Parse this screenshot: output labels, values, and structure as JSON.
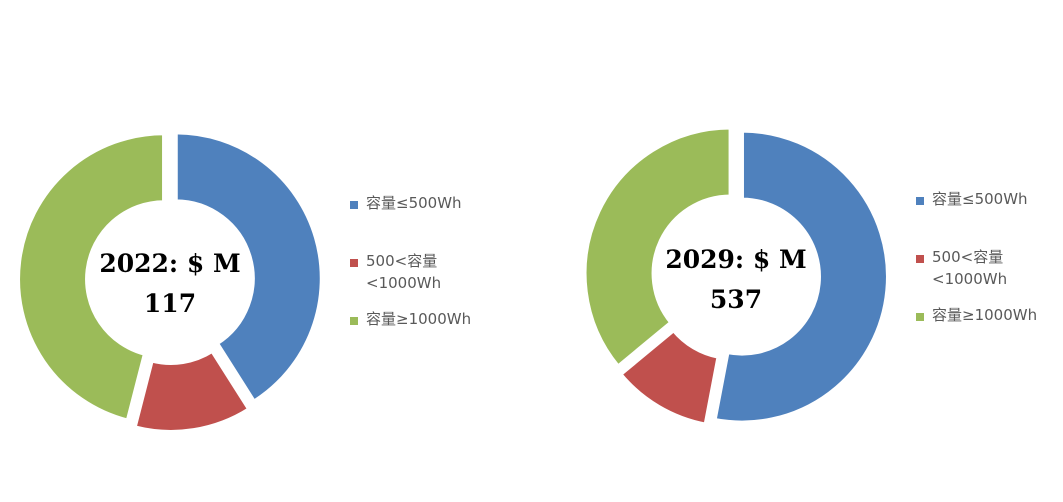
{
  "colors": {
    "blue": "#4F81BD",
    "red": "#C0504D",
    "green": "#9BBB59"
  },
  "chart_data": [
    {
      "type": "pie",
      "variant": "donut",
      "center_label": [
        "2022: $ M",
        "117"
      ],
      "categories": [
        "容量≤500Wh",
        "500<容量<1000Wh",
        "容量≥1000Wh"
      ],
      "legend_labels": [
        [
          "容量≤500Wh"
        ],
        [
          "500<容量",
          "<1000Wh"
        ],
        [
          "容量≥1000Wh"
        ]
      ],
      "values": [
        41,
        13,
        46
      ],
      "colors": [
        "#4F81BD",
        "#C0504D",
        "#9BBB59"
      ],
      "legend_position": "right"
    },
    {
      "type": "pie",
      "variant": "donut",
      "center_label": [
        "2029: $ M",
        "537"
      ],
      "categories": [
        "容量≤500Wh",
        "500<容量<1000Wh",
        "容量≥1000Wh"
      ],
      "legend_labels": [
        [
          "容量≤500Wh"
        ],
        [
          "500<容量",
          "<1000Wh"
        ],
        [
          "容量≥1000Wh"
        ]
      ],
      "values": [
        53,
        11,
        36
      ],
      "colors": [
        "#4F81BD",
        "#C0504D",
        "#9BBB59"
      ],
      "legend_position": "right"
    }
  ]
}
